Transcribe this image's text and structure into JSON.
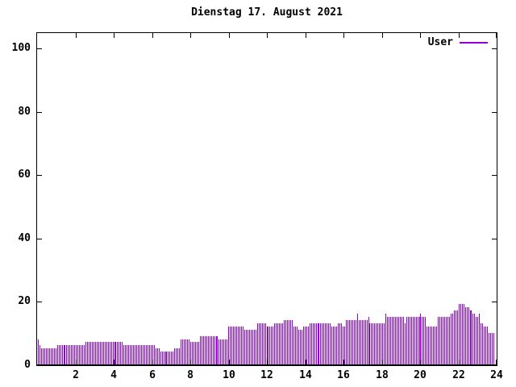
{
  "window": {
    "background": "#ffffff",
    "border_color": "#000000"
  },
  "chart_data": {
    "type": "bar",
    "title": "Dienstag 17. August 2021",
    "xlabel": "",
    "ylabel": "",
    "xlim": [
      0,
      24
    ],
    "ylim": [
      0,
      105
    ],
    "x_ticks": [
      2,
      4,
      6,
      8,
      10,
      12,
      14,
      16,
      18,
      20,
      22,
      24
    ],
    "y_ticks": [
      0,
      20,
      40,
      60,
      80,
      100
    ],
    "grid": "off",
    "legend_position": "top-right-inside",
    "bar_style": "impulses",
    "x_step_minutes": 5,
    "series": [
      {
        "name": "User",
        "color": "#9400d3",
        "values": [
          8,
          6,
          5,
          5,
          5,
          5,
          5,
          5,
          5,
          5,
          5,
          5,
          6,
          6,
          6,
          6,
          6,
          6,
          6,
          6,
          6,
          6,
          6,
          6,
          6,
          6,
          6,
          6,
          6,
          6,
          7,
          7,
          7,
          7,
          7,
          7,
          7,
          7,
          7,
          7,
          7,
          7,
          7,
          7,
          7,
          7,
          7,
          7,
          7,
          7,
          7,
          7,
          7,
          7,
          6,
          6,
          6,
          6,
          6,
          6,
          6,
          6,
          6,
          6,
          6,
          6,
          6,
          6,
          6,
          6,
          6,
          6,
          6,
          6,
          5,
          5,
          5,
          4,
          4,
          4,
          4,
          4,
          4,
          4,
          4,
          4,
          5,
          5,
          5,
          5,
          8,
          8,
          8,
          8,
          8,
          8,
          7,
          7,
          7,
          7,
          7,
          7,
          9,
          9,
          9,
          9,
          9,
          9,
          9,
          9,
          9,
          9,
          9,
          9,
          8,
          8,
          8,
          8,
          8,
          8,
          12,
          12,
          12,
          12,
          12,
          12,
          12,
          12,
          12,
          12,
          11,
          11,
          11,
          11,
          11,
          11,
          11,
          11,
          13,
          13,
          13,
          13,
          13,
          13,
          12,
          12,
          12,
          12,
          12,
          13,
          13,
          13,
          13,
          13,
          13,
          14,
          14,
          14,
          14,
          14,
          14,
          12,
          12,
          12,
          11,
          11,
          11,
          12,
          12,
          12,
          12,
          13,
          13,
          13,
          13,
          13,
          13,
          13,
          13,
          13,
          13,
          13,
          13,
          13,
          13,
          12,
          12,
          12,
          12,
          13,
          13,
          13,
          12,
          12,
          14,
          14,
          14,
          14,
          14,
          14,
          14,
          16,
          14,
          14,
          14,
          14,
          14,
          14,
          15,
          13,
          13,
          13,
          13,
          13,
          13,
          13,
          13,
          13,
          13,
          16,
          15,
          15,
          15,
          15,
          15,
          15,
          15,
          15,
          15,
          15,
          15,
          13,
          15,
          15,
          15,
          15,
          15,
          15,
          15,
          15,
          15,
          16,
          15,
          15,
          15,
          12,
          12,
          12,
          12,
          12,
          12,
          12,
          15,
          15,
          15,
          15,
          15,
          15,
          15,
          15,
          16,
          16,
          17,
          17,
          17,
          19,
          19,
          19,
          19,
          18,
          18,
          18,
          17,
          17,
          16,
          16,
          15,
          15,
          16,
          13,
          13,
          12,
          12,
          12,
          10,
          10,
          10,
          10
        ]
      }
    ]
  }
}
